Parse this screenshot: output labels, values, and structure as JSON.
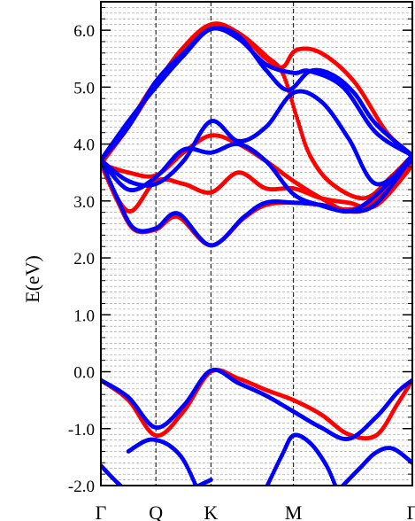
{
  "chart_data": {
    "type": "scatter",
    "title": "",
    "ylabel": "E(eV)",
    "xlabel": "",
    "ylim": [
      -2.0,
      6.5
    ],
    "xlim": [
      0,
      5.66
    ],
    "y_ticks": [
      {
        "value": 6.0,
        "label": "6.0"
      },
      {
        "value": 5.0,
        "label": "5.0"
      },
      {
        "value": 4.0,
        "label": "4.0"
      },
      {
        "value": 3.0,
        "label": "3.0"
      },
      {
        "value": 2.0,
        "label": "2.0"
      },
      {
        "value": 1.0,
        "label": "1.0"
      },
      {
        "value": 0.0,
        "label": "0.0"
      },
      {
        "value": -1.0,
        "label": "-1.0"
      },
      {
        "value": -2.0,
        "label": "-2.0"
      }
    ],
    "kpoints": [
      {
        "label": "Γ",
        "x": 0
      },
      {
        "label": "Q",
        "x": 1.0
      },
      {
        "label": "K",
        "x": 2.0
      },
      {
        "label": "M",
        "x": 3.5
      },
      {
        "label": "Γ",
        "x": 5.66
      }
    ],
    "grid": true,
    "legend": "none",
    "series": [
      {
        "color": "#ff0000",
        "bands": [
          {
            "x": [
              0,
              0.5,
              1.0,
              1.5,
              2.0,
              2.5,
              3.0,
              3.5,
              4.0,
              4.5,
              5.0,
              5.4,
              5.66
            ],
            "y": [
              -0.15,
              -0.5,
              -1.12,
              -0.7,
              0.0,
              -0.12,
              -0.32,
              -0.5,
              -0.75,
              -1.1,
              -1.12,
              -0.55,
              -0.15
            ]
          },
          {
            "x": [
              0,
              0.3,
              0.6,
              1.0,
              1.4,
              2.0,
              2.6,
              3.0,
              3.5,
              4.0,
              4.5,
              5.0,
              5.66
            ],
            "y": [
              3.65,
              3.0,
              2.5,
              2.5,
              2.72,
              2.22,
              2.7,
              2.93,
              2.97,
              2.93,
              2.85,
              3.0,
              3.75
            ]
          },
          {
            "x": [
              0,
              0.5,
              1.0,
              1.5,
              2.0,
              2.5,
              3.0,
              3.5,
              4.0,
              4.5,
              5.0,
              5.66
            ],
            "y": [
              3.65,
              2.82,
              3.35,
              3.3,
              3.15,
              3.5,
              3.22,
              3.22,
              3.05,
              2.97,
              2.92,
              3.62
            ]
          },
          {
            "x": [
              0,
              0.5,
              1.0,
              1.5,
              2.0,
              2.5,
              3.0,
              3.5,
              4.0,
              4.5,
              5.0,
              5.66
            ],
            "y": [
              3.65,
              3.5,
              3.45,
              3.85,
              4.15,
              4.0,
              3.7,
              3.35,
              3.05,
              2.82,
              2.95,
              3.7
            ]
          },
          {
            "x": [
              0,
              0.5,
              1.0,
              1.5,
              2.0,
              2.5,
              3.0,
              3.3,
              3.55,
              3.8,
              4.2,
              4.8,
              5.3,
              5.66
            ],
            "y": [
              3.65,
              4.3,
              5.05,
              5.7,
              6.1,
              5.95,
              5.55,
              5.25,
              4.5,
              3.8,
              3.3,
              3.05,
              3.45,
              3.8
            ]
          },
          {
            "x": [
              0,
              0.5,
              1.0,
              1.5,
              2.0,
              2.5,
              3.0,
              3.3,
              3.55,
              4.0,
              4.6,
              5.2,
              5.66
            ],
            "y": [
              3.65,
              4.35,
              5.1,
              5.6,
              6.1,
              5.95,
              5.5,
              5.35,
              5.65,
              5.6,
              5.1,
              4.2,
              3.8
            ]
          }
        ]
      },
      {
        "color": "#0000ff",
        "bands": [
          {
            "x": [
              0,
              0.5,
              1.0,
              1.5,
              2.0,
              2.5,
              3.0,
              3.5,
              4.0,
              4.5,
              5.0,
              5.4,
              5.66
            ],
            "y": [
              -0.15,
              -0.45,
              -0.98,
              -0.6,
              0.02,
              -0.2,
              -0.42,
              -0.7,
              -0.98,
              -1.18,
              -0.8,
              -0.35,
              -0.15
            ]
          },
          {
            "x": [
              0,
              0.3,
              0.6,
              1.0,
              1.4,
              2.0,
              2.6,
              3.0,
              3.5,
              4.0,
              4.5,
              5.0,
              5.66
            ],
            "y": [
              3.72,
              3.05,
              2.52,
              2.52,
              2.78,
              2.22,
              2.72,
              2.97,
              2.97,
              2.93,
              2.82,
              3.1,
              3.8
            ]
          },
          {
            "x": [
              0,
              0.5,
              1.0,
              1.5,
              2.0,
              2.5,
              3.0,
              3.5,
              4.0,
              4.5,
              5.0,
              5.66
            ],
            "y": [
              3.72,
              3.2,
              3.42,
              3.9,
              3.85,
              4.0,
              3.7,
              3.12,
              2.92,
              2.82,
              2.95,
              3.78
            ]
          },
          {
            "x": [
              0,
              0.5,
              1.0,
              1.5,
              2.0,
              2.5,
              3.0,
              3.5,
              4.0,
              4.5,
              5.0,
              5.66
            ],
            "y": [
              3.72,
              3.35,
              3.3,
              3.7,
              4.4,
              4.05,
              4.3,
              4.9,
              4.75,
              4.1,
              3.3,
              3.72
            ]
          },
          {
            "x": [
              0,
              0.5,
              1.0,
              1.5,
              2.0,
              2.5,
              3.0,
              3.4,
              3.8,
              4.2,
              4.6,
              5.0,
              5.66
            ],
            "y": [
              3.72,
              4.3,
              5.1,
              5.6,
              6.02,
              5.9,
              5.3,
              4.95,
              5.28,
              5.22,
              4.9,
              4.35,
              3.8
            ]
          },
          {
            "x": [
              0,
              0.5,
              1.0,
              1.5,
              2.0,
              2.5,
              3.0,
              3.5,
              3.8,
              4.4,
              5.0,
              5.66
            ],
            "y": [
              3.72,
              4.4,
              5.0,
              5.55,
              6.02,
              5.85,
              5.4,
              5.25,
              5.28,
              5.0,
              4.2,
              3.8
            ]
          },
          {
            "x": [
              0,
              0.3,
              0.6,
              1.0,
              1.4,
              1.7,
              2.0
            ],
            "y": [
              -1.65,
              -1.95,
              -2.2,
              -2.5,
              -2.3,
              -2.05,
              -1.9
            ]
          },
          {
            "x": [
              0.5,
              0.8,
              1.0,
              1.25,
              1.5,
              1.75
            ],
            "y": [
              -1.4,
              -1.22,
              -1.2,
              -1.3,
              -1.55,
              -2.05
            ]
          },
          {
            "x": [
              3.0,
              3.3,
              3.5,
              3.8,
              4.1,
              4.3
            ],
            "y": [
              -2.05,
              -1.45,
              -1.12,
              -1.25,
              -1.65,
              -2.1
            ]
          },
          {
            "x": [
              4.3,
              4.7,
              5.0,
              5.3,
              5.66
            ],
            "y": [
              -2.1,
              -1.7,
              -1.42,
              -1.35,
              -1.6
            ]
          }
        ]
      }
    ]
  }
}
